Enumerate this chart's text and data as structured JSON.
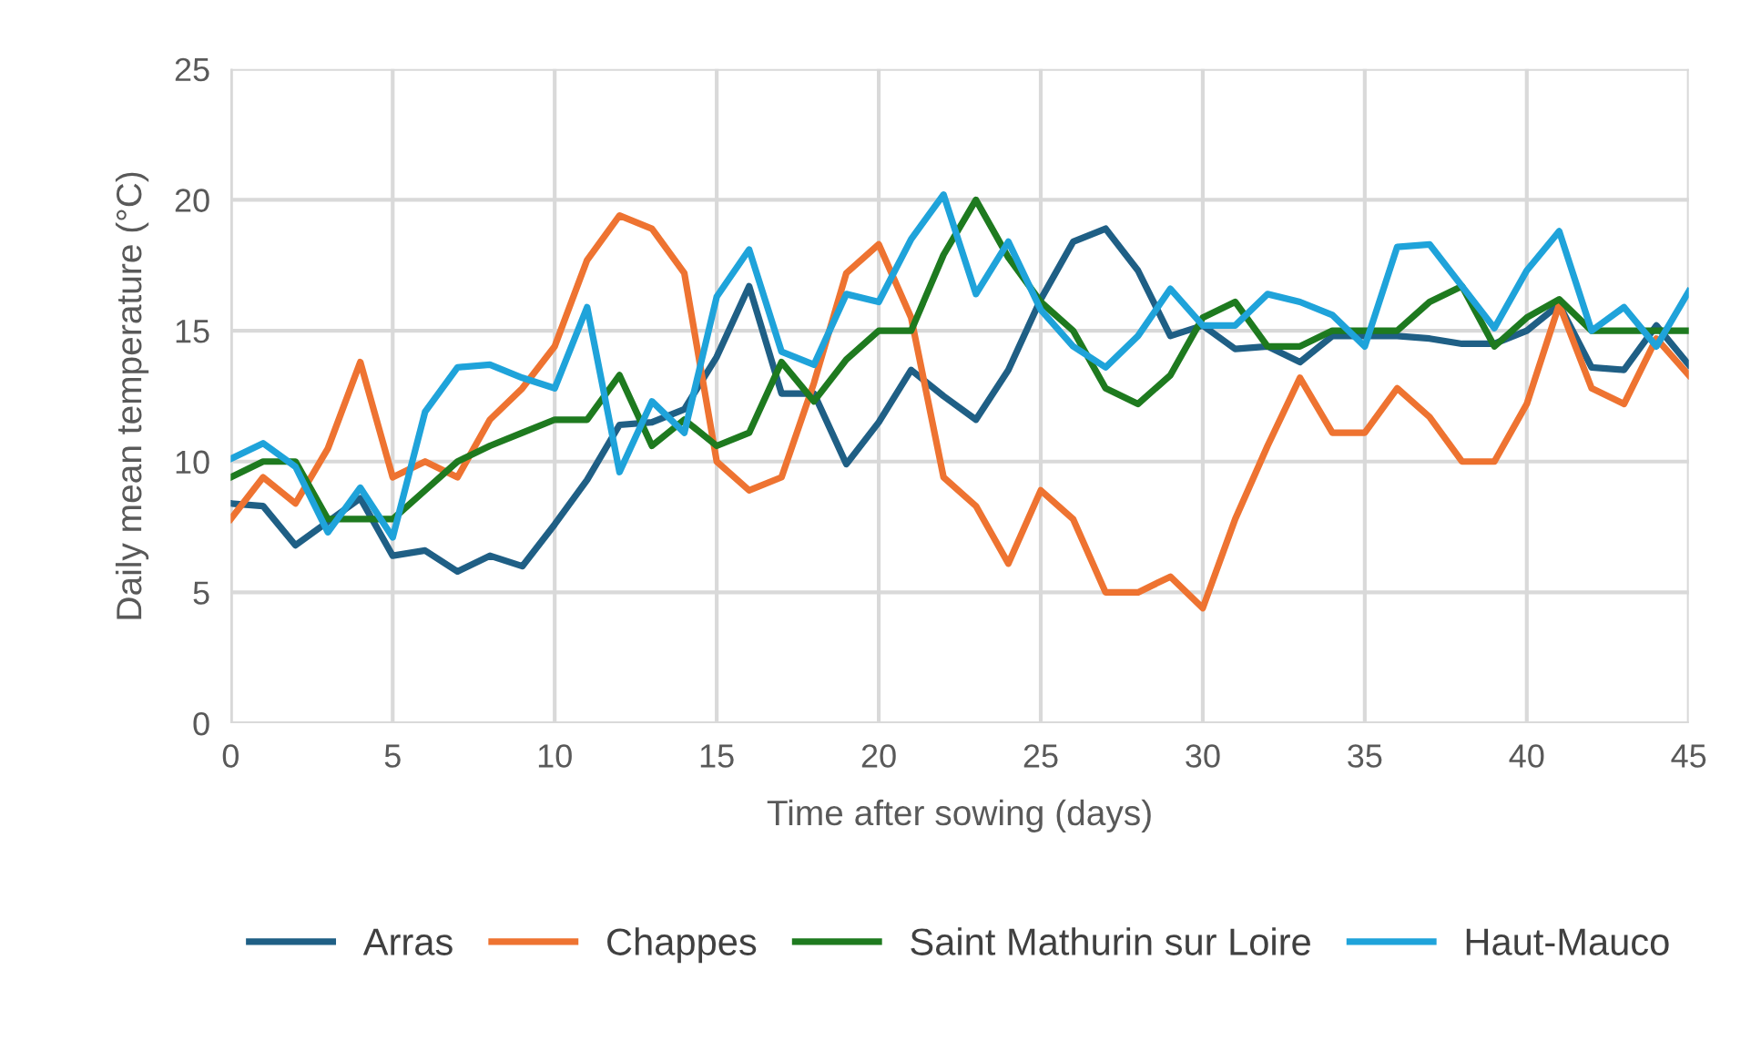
{
  "chart_data": {
    "type": "line",
    "xlabel": "Time after sowing (days)",
    "ylabel": "Daily mean temperature (°C)",
    "x": [
      0,
      1,
      2,
      3,
      4,
      5,
      6,
      7,
      8,
      9,
      10,
      11,
      12,
      13,
      14,
      15,
      16,
      17,
      18,
      19,
      20,
      21,
      22,
      23,
      24,
      25,
      26,
      27,
      28,
      29,
      30,
      31,
      32,
      33,
      34,
      35,
      36,
      37,
      38,
      39,
      40,
      41,
      42,
      43,
      44,
      45
    ],
    "xlim": [
      0,
      45
    ],
    "xticks": [
      0,
      5,
      10,
      15,
      20,
      25,
      30,
      35,
      40,
      45
    ],
    "ylim": [
      0,
      25
    ],
    "yticks": [
      0,
      5,
      10,
      15,
      20,
      25
    ],
    "grid": true,
    "legend": "bottom",
    "marker": "none",
    "line_style": "solid",
    "series": [
      {
        "name": "Arras",
        "color": "#1f5f85",
        "values": [
          8.4,
          8.3,
          6.8,
          7.7,
          8.6,
          6.4,
          6.6,
          5.8,
          6.4,
          6.0,
          7.6,
          9.3,
          11.4,
          11.5,
          12.0,
          14.0,
          16.7,
          12.6,
          12.6,
          9.9,
          11.5,
          13.5,
          12.5,
          11.6,
          13.5,
          16.2,
          18.4,
          18.9,
          17.3,
          14.8,
          15.2,
          14.3,
          14.4,
          13.8,
          14.8,
          14.8,
          14.8,
          14.7,
          14.5,
          14.5,
          15.0,
          16.0,
          13.6,
          13.5,
          15.2,
          13.7
        ]
      },
      {
        "name": "Chappes",
        "color": "#ee7331",
        "values": [
          7.8,
          9.4,
          8.4,
          10.5,
          13.8,
          9.4,
          10.0,
          9.4,
          11.6,
          12.8,
          14.4,
          17.7,
          19.4,
          18.9,
          17.2,
          10.0,
          8.9,
          9.4,
          13.0,
          17.2,
          18.3,
          15.5,
          9.4,
          8.3,
          6.1,
          8.9,
          7.8,
          5.0,
          5.0,
          5.6,
          4.4,
          7.8,
          10.6,
          13.2,
          11.1,
          11.1,
          12.8,
          11.7,
          10.0,
          10.0,
          12.2,
          16.0,
          12.8,
          12.2,
          14.7,
          13.3
        ]
      },
      {
        "name": "Saint Mathurin sur Loire",
        "color": "#1e7a1f",
        "values": [
          9.4,
          10.0,
          10.0,
          7.8,
          7.8,
          7.8,
          8.9,
          10.0,
          10.6,
          11.1,
          11.6,
          11.6,
          13.3,
          10.6,
          11.6,
          10.6,
          11.1,
          13.8,
          12.3,
          13.9,
          15.0,
          15.0,
          17.9,
          20.0,
          17.8,
          16.1,
          15.0,
          12.8,
          12.2,
          13.3,
          15.5,
          16.1,
          14.4,
          14.4,
          15.0,
          15.0,
          15.0,
          16.1,
          16.7,
          14.4,
          15.5,
          16.2,
          15.0,
          15.0,
          15.0,
          15.0
        ]
      },
      {
        "name": "Haut-Mauco",
        "color": "#1fa3da",
        "values": [
          10.1,
          10.7,
          9.8,
          7.3,
          9.0,
          7.1,
          11.9,
          13.6,
          13.7,
          13.2,
          12.8,
          15.9,
          9.6,
          12.3,
          11.1,
          16.3,
          18.1,
          14.2,
          13.7,
          16.4,
          16.1,
          18.5,
          20.2,
          16.4,
          18.4,
          15.8,
          14.4,
          13.6,
          14.8,
          16.6,
          15.2,
          15.2,
          16.4,
          16.1,
          15.6,
          14.4,
          18.2,
          18.3,
          16.7,
          15.1,
          17.3,
          18.8,
          15.0,
          15.9,
          14.4,
          16.5
        ]
      }
    ]
  }
}
